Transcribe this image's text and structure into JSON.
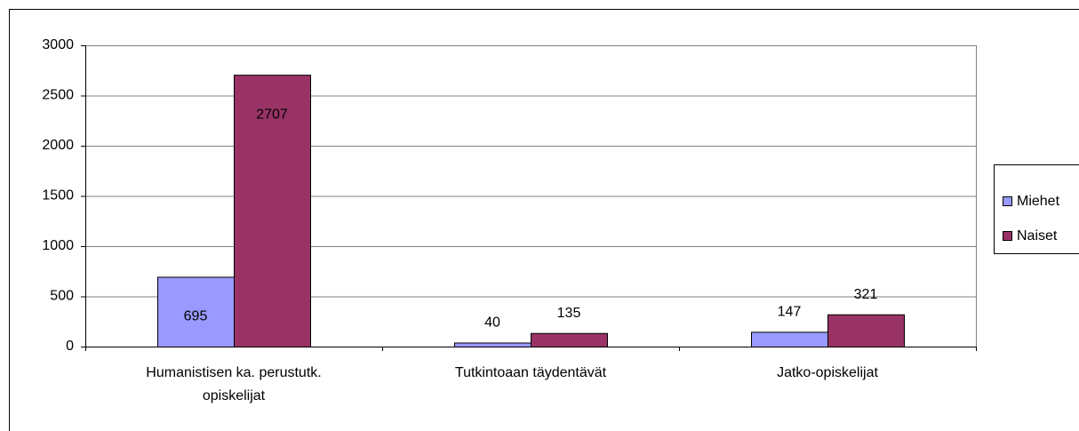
{
  "chart_data": {
    "type": "bar",
    "categories": [
      "Humanistisen ka. perustutk. opiskelijat",
      "Tutkintoaan täydentävät",
      "Jatko-opiskelijat"
    ],
    "series": [
      {
        "name": "Miehet",
        "color": "#9999ff",
        "values": [
          695,
          40,
          147
        ]
      },
      {
        "name": "Naiset",
        "color": "#993366",
        "values": [
          2707,
          135,
          321
        ]
      }
    ],
    "ylim": [
      0,
      3000
    ],
    "yticks": [
      0,
      500,
      1000,
      1500,
      2000,
      2500,
      3000
    ],
    "grid": true,
    "legend": "right"
  }
}
